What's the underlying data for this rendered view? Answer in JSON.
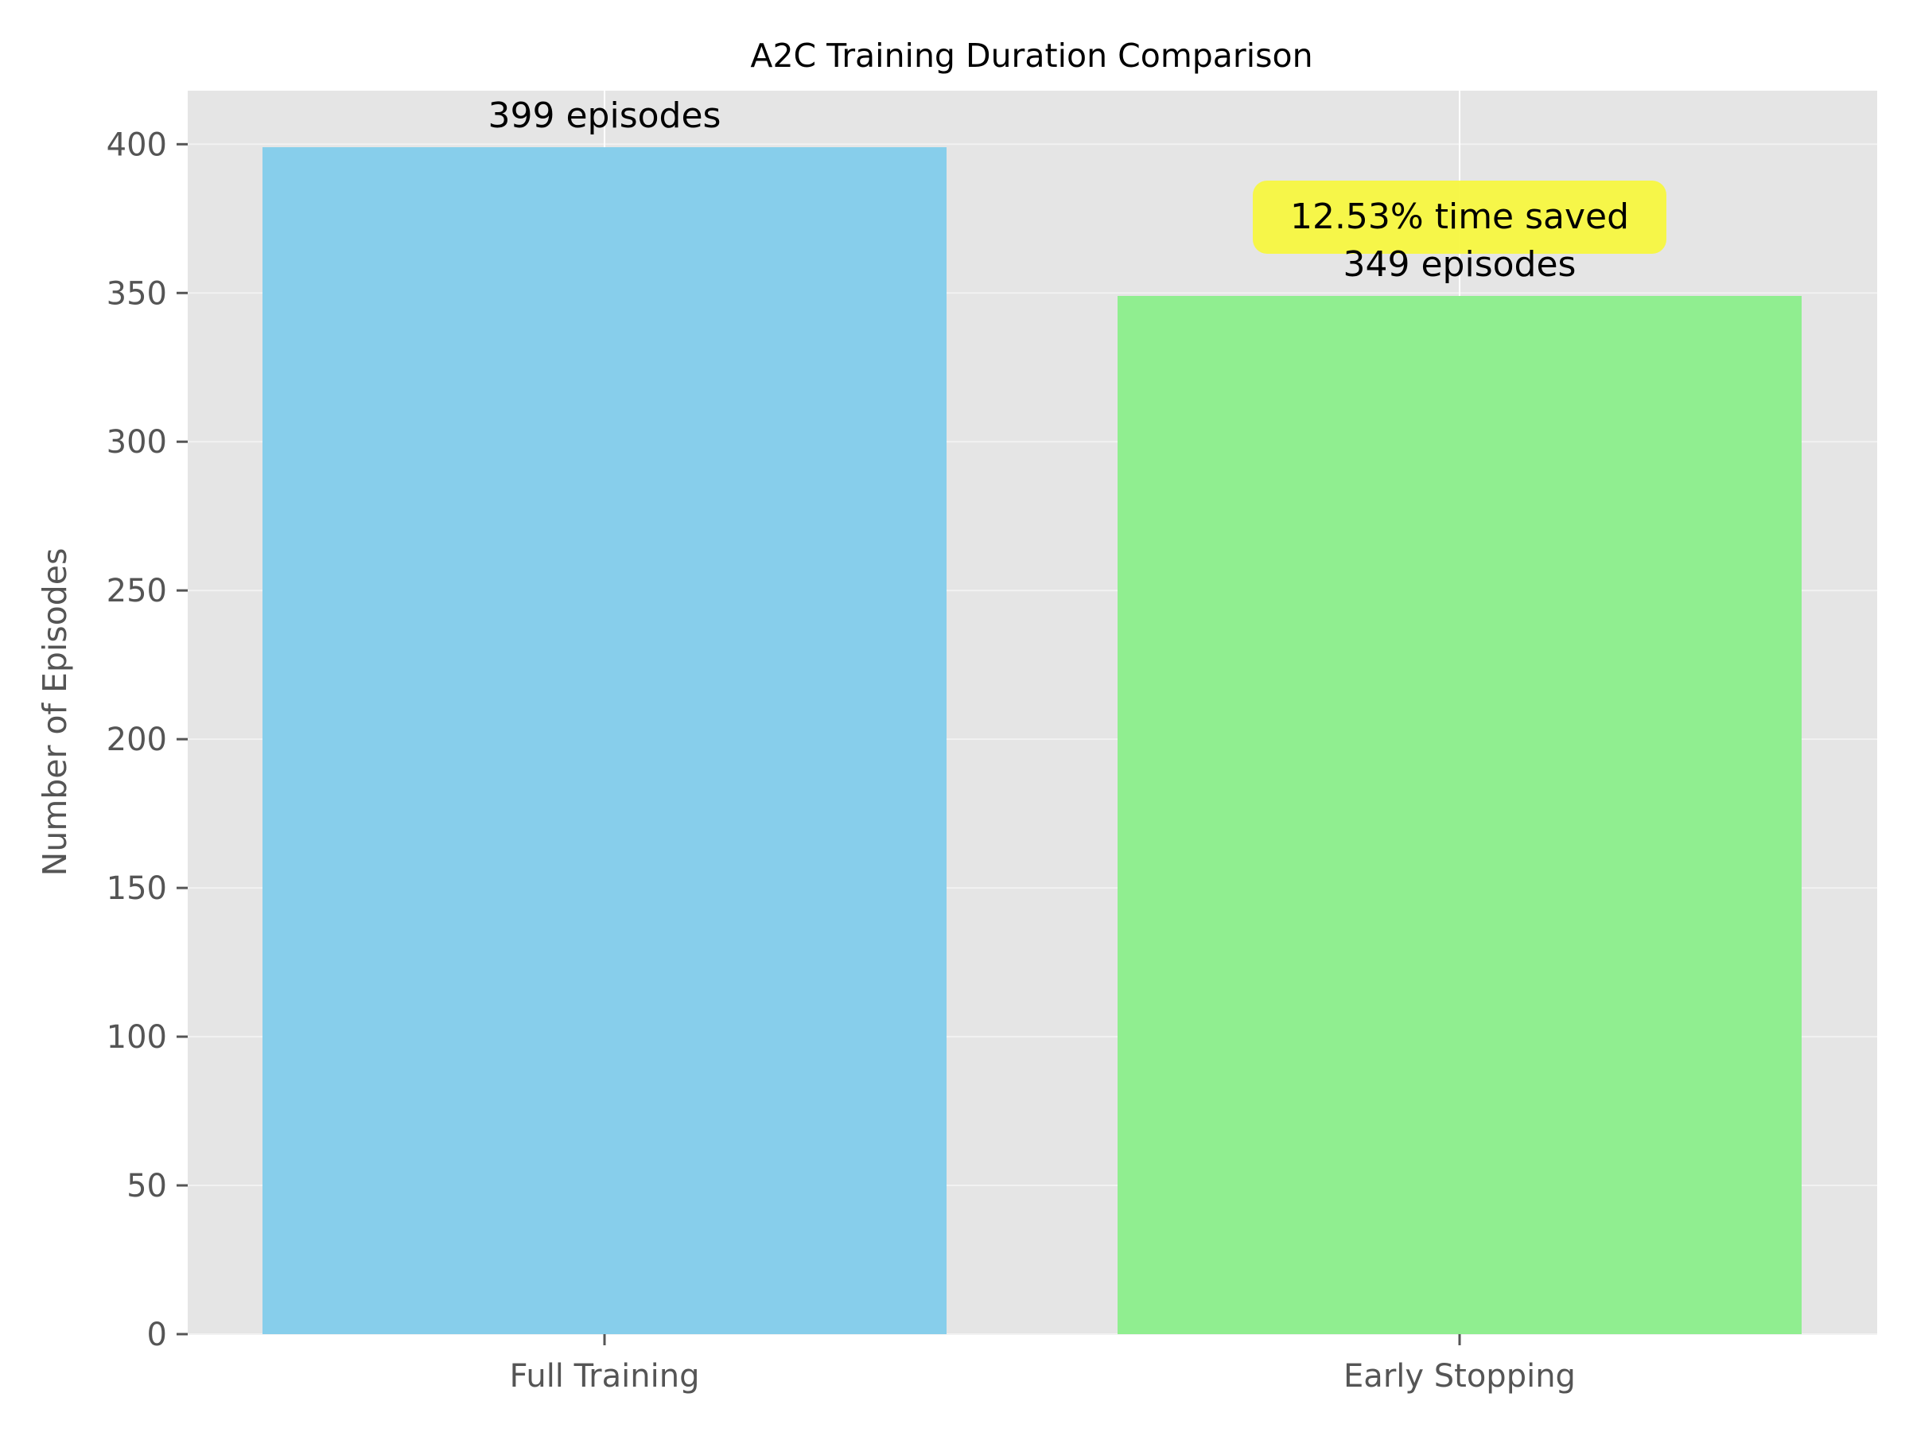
{
  "chart_data": {
    "type": "bar",
    "title": "A2C Training Duration Comparison",
    "xlabel": "",
    "ylabel": "Number of Episodes",
    "categories": [
      "Full Training",
      "Early Stopping"
    ],
    "values": [
      399,
      349
    ],
    "value_labels": [
      "399 episodes",
      "349 episodes"
    ],
    "colors": [
      "#87CEEB",
      "#90EE90"
    ],
    "ylim": [
      0,
      418
    ],
    "yticks": [
      0,
      50,
      100,
      150,
      200,
      250,
      300,
      350,
      400
    ],
    "grid": true,
    "annotation": {
      "text": "12.53% time saved",
      "category_index": 1,
      "background": "#F7F740"
    }
  }
}
